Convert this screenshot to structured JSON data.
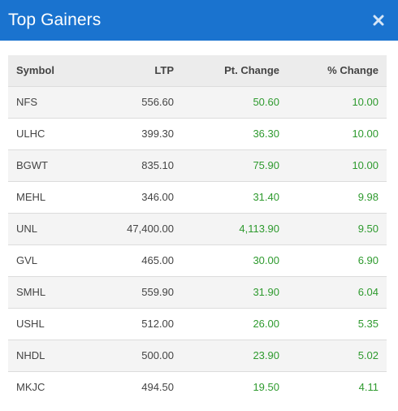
{
  "header": {
    "title": "Top Gainers",
    "close_icon": "close-icon"
  },
  "table": {
    "columns": [
      "Symbol",
      "LTP",
      "Pt. Change",
      "% Change"
    ],
    "rows": [
      {
        "symbol": "NFS",
        "ltp": "556.60",
        "pt": "50.60",
        "pct": "10.00"
      },
      {
        "symbol": "ULHC",
        "ltp": "399.30",
        "pt": "36.30",
        "pct": "10.00"
      },
      {
        "symbol": "BGWT",
        "ltp": "835.10",
        "pt": "75.90",
        "pct": "10.00"
      },
      {
        "symbol": "MEHL",
        "ltp": "346.00",
        "pt": "31.40",
        "pct": "9.98"
      },
      {
        "symbol": "UNL",
        "ltp": "47,400.00",
        "pt": "4,113.90",
        "pct": "9.50"
      },
      {
        "symbol": "GVL",
        "ltp": "465.00",
        "pt": "30.00",
        "pct": "6.90"
      },
      {
        "symbol": "SMHL",
        "ltp": "559.90",
        "pt": "31.90",
        "pct": "6.04"
      },
      {
        "symbol": "USHL",
        "ltp": "512.00",
        "pt": "26.00",
        "pct": "5.35"
      },
      {
        "symbol": "NHDL",
        "ltp": "500.00",
        "pt": "23.90",
        "pct": "5.02"
      },
      {
        "symbol": "MKJC",
        "ltp": "494.50",
        "pt": "19.50",
        "pct": "4.11"
      }
    ]
  },
  "colors": {
    "header_bg": "#1a73cf",
    "gain": "#2e9a2e"
  }
}
